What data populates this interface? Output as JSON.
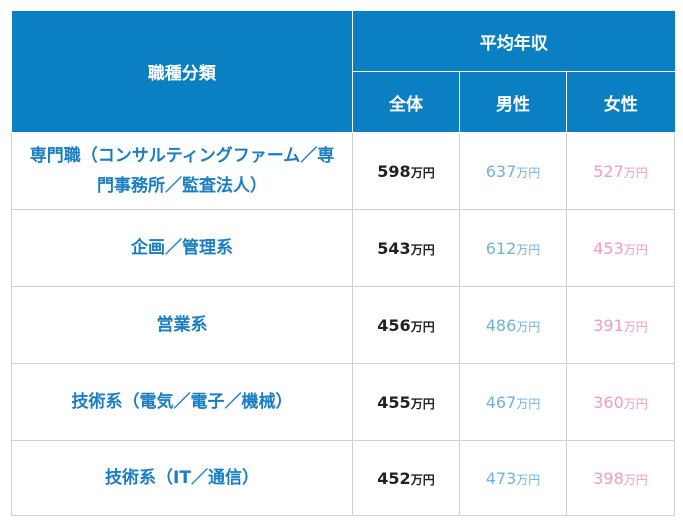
{
  "table": {
    "header": {
      "category": "職種分類",
      "group": "平均年収",
      "total": "全体",
      "male": "男性",
      "female": "女性"
    },
    "unit": "万円",
    "rows": [
      {
        "category": "専門職（コンサルティングファーム／専門事務所／監査法人）",
        "total": "598",
        "male": "637",
        "female": "527"
      },
      {
        "category": "企画／管理系",
        "total": "543",
        "male": "612",
        "female": "453"
      },
      {
        "category": "営業系",
        "total": "456",
        "male": "486",
        "female": "391"
      },
      {
        "category": "技術系（電気／電子／機械）",
        "total": "455",
        "male": "467",
        "female": "360"
      },
      {
        "category": "技術系（IT／通信）",
        "total": "452",
        "male": "473",
        "female": "398"
      }
    ]
  },
  "colors": {
    "header_bg": "#0a7fc1",
    "category_text": "#1a7ec0",
    "male_text": "#6fb3de",
    "female_text": "#f29ac1"
  }
}
